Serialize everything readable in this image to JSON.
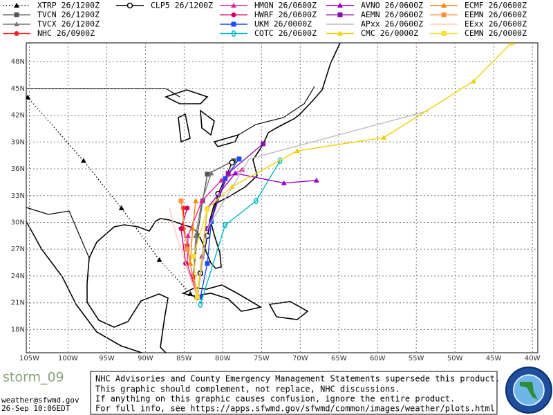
{
  "chart_data": {
    "type": "track-map",
    "xlim": [
      -105.4,
      -39.3
    ],
    "ylim": [
      15.4,
      50.1
    ],
    "grid": true,
    "xticks": [
      {
        "value": -105,
        "label": "105W"
      },
      {
        "value": -100,
        "label": "100W"
      },
      {
        "value": -95,
        "label": "95W"
      },
      {
        "value": -90,
        "label": "90W"
      },
      {
        "value": -85,
        "label": "85W"
      },
      {
        "value": -80,
        "label": "80W"
      },
      {
        "value": -75,
        "label": "75W"
      },
      {
        "value": -70,
        "label": "70W"
      },
      {
        "value": -65,
        "label": "65W"
      },
      {
        "value": -60,
        "label": "60W"
      },
      {
        "value": -55,
        "label": "55W"
      },
      {
        "value": -50,
        "label": "50W"
      },
      {
        "value": -45,
        "label": "45W"
      },
      {
        "value": -40,
        "label": "40W"
      }
    ],
    "yticks": [
      {
        "value": 18,
        "label": "18N"
      },
      {
        "value": 21,
        "label": "21N"
      },
      {
        "value": 24,
        "label": "24N"
      },
      {
        "value": 27,
        "label": "27N"
      },
      {
        "value": 30,
        "label": "30N"
      },
      {
        "value": 33,
        "label": "33N"
      },
      {
        "value": 36,
        "label": "36N"
      },
      {
        "value": 39,
        "label": "39N"
      },
      {
        "value": 42,
        "label": "42N"
      },
      {
        "value": 45,
        "label": "45N"
      },
      {
        "value": 48,
        "label": "48N"
      }
    ],
    "series": [
      {
        "name": "XTRP 26/1200Z",
        "color": "#000000",
        "marker": "triangle",
        "line": "dotted",
        "lon": [
          -84.2,
          -88.2,
          -93.1,
          -98.0,
          -105.2
        ],
        "lat": [
          22.0,
          25.8,
          31.6,
          36.9,
          44.0
        ]
      },
      {
        "name": "TVCN 26/1200Z",
        "color": "#555555",
        "marker": "square",
        "line": "solid",
        "lon": [
          -83.3,
          -83.8,
          -83.3,
          -82.6,
          -82.0,
          -78.6
        ],
        "lat": [
          21.6,
          23.9,
          28.5,
          32.4,
          35.4,
          36.9
        ]
      },
      {
        "name": "TVCX 26/1200Z",
        "color": "#777777",
        "marker": "triangle",
        "line": "solid",
        "lon": [
          -83.3,
          -83.8,
          -83.5,
          -82.7,
          -81.5
        ],
        "lat": [
          21.6,
          23.9,
          28.5,
          32.4,
          35.5
        ]
      },
      {
        "name": "NHC 26/0900Z",
        "color": "#ff2020",
        "marker": "circle",
        "line": "solid",
        "lon": [
          -83.3,
          -83.9,
          -84.6,
          -85.1,
          -85.1
        ],
        "lat": [
          21.6,
          23.9,
          27.4,
          29.3,
          31.6
        ]
      },
      {
        "name": "CLP5 26/1200Z",
        "color": "#000000",
        "marker": "open-circle",
        "line": "solid",
        "lon": [
          -83.3,
          -82.9,
          -82.0,
          -80.6,
          -78.8
        ],
        "lat": [
          21.6,
          24.3,
          28.5,
          33.2,
          36.7
        ]
      },
      {
        "name": "HMON 26/0600Z",
        "color": "#e020a0",
        "marker": "triangle",
        "line": "solid",
        "lon": [
          -83.3,
          -84.6,
          -84.5,
          -82.7,
          -80.2,
          -77.5
        ],
        "lat": [
          21.6,
          25.4,
          28.5,
          32.4,
          34.7,
          35.9
        ]
      },
      {
        "name": "HWRF 26/0600Z",
        "color": "#d00060",
        "marker": "circle",
        "line": "solid",
        "lon": [
          -83.3,
          -84.8,
          -85.4,
          -84.6
        ],
        "lat": [
          21.6,
          25.4,
          29.3,
          31.6
        ]
      },
      {
        "name": "UKM 26/0000Z",
        "color": "#1a4cff",
        "marker": "square",
        "line": "solid",
        "lon": [
          -82.9,
          -82.0,
          -81.5,
          -79.7,
          -77.9
        ],
        "lat": [
          21.6,
          25.4,
          30.1,
          34.9,
          37.1
        ]
      },
      {
        "name": "COTC 26/0600Z",
        "color": "#00b8c8",
        "marker": "zero",
        "line": "solid",
        "lon": [
          -82.9,
          -79.7,
          -75.7,
          -72.6
        ],
        "lat": [
          20.8,
          29.7,
          32.4,
          36.9
        ]
      },
      {
        "name": "AVNO 26/0600Z",
        "color": "#9900cc",
        "marker": "triangle",
        "line": "solid",
        "lon": [
          -83.3,
          -82.7,
          -82.0,
          -78.4,
          -72.1,
          -67.9
        ],
        "lat": [
          21.6,
          26.2,
          31.6,
          35.5,
          34.4,
          34.7
        ]
      },
      {
        "name": "AEMN 26/0600Z",
        "color": "#8a10b0",
        "marker": "square",
        "line": "solid",
        "lon": [
          -83.3,
          -82.0,
          -79.3,
          -74.8
        ],
        "lat": [
          21.6,
          29.3,
          35.5,
          38.8
        ]
      },
      {
        "name": "APxx 26/0600Z",
        "color": "#bbbbbb",
        "marker": "none",
        "line": "solid",
        "lon": [
          -83.3,
          -82.0,
          -76.6,
          -53.4
        ],
        "lat": [
          21.6,
          29.3,
          37.1,
          42.5
        ]
      },
      {
        "name": "CMC 26/0000Z",
        "color": "#f0d000",
        "marker": "triangle",
        "line": "solid",
        "lon": [
          -83.3,
          -82.0,
          -78.8,
          -70.4,
          -59.2,
          -47.6,
          -42.7
        ],
        "lat": [
          21.6,
          31.6,
          34.0,
          38.0,
          39.5,
          45.8,
          50.1
        ]
      },
      {
        "name": "ECMF 26/0600Z",
        "color": "#ff8000",
        "marker": "triangle",
        "line": "solid",
        "lon": [
          -83.3,
          -84.2,
          -83.9,
          -83.5
        ],
        "lat": [
          21.6,
          25.4,
          29.3,
          32.4
        ]
      },
      {
        "name": "EEMN 26/0600Z",
        "color": "#ff9040",
        "marker": "square",
        "line": "solid",
        "lon": [
          -83.3,
          -84.6,
          -85.4
        ],
        "lat": [
          21.6,
          27.0,
          32.4
        ]
      },
      {
        "name": "EExx 26/0600Z",
        "color": "#ffccbb",
        "marker": "none",
        "line": "solid",
        "lon": [
          -83.3,
          -86.0,
          -86.9
        ],
        "lat": [
          21.6,
          28.5,
          31.6
        ]
      },
      {
        "name": "CEMN 26/0000Z",
        "color": "#f5e030",
        "marker": "square",
        "line": "solid",
        "lon": [
          -83.3,
          -83.8,
          -82.0
        ],
        "lat": [
          21.6,
          26.2,
          31.5
        ]
      }
    ]
  },
  "footer": {
    "logo": "storm_09",
    "email": "weather@sfwmd.gov",
    "timestamp": "26-Sep 10:06EDT",
    "notice": [
      "NHC Advisories and County Emergency Management Statements supersede this product.",
      "This graphic should complement, not replace, NHC discussions.",
      "If anything on this graphic causes confusion, ignore the entire product.",
      "For full info, see  https://apps.sfwmd.gov/sfwmd/common/images/weather/plots.html"
    ]
  }
}
